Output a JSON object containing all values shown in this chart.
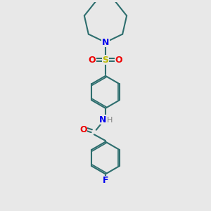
{
  "background_color": "#e8e8e8",
  "bond_color": "#2d6e6e",
  "bond_width": 1.5,
  "N_color": "#0000ee",
  "O_color": "#ee0000",
  "S_color": "#bbbb00",
  "F_color": "#0000ee",
  "H_color": "#808080",
  "figsize": [
    3.0,
    3.0
  ],
  "dpi": 100,
  "xlim": [
    0,
    10
  ],
  "ylim": [
    0,
    10
  ]
}
